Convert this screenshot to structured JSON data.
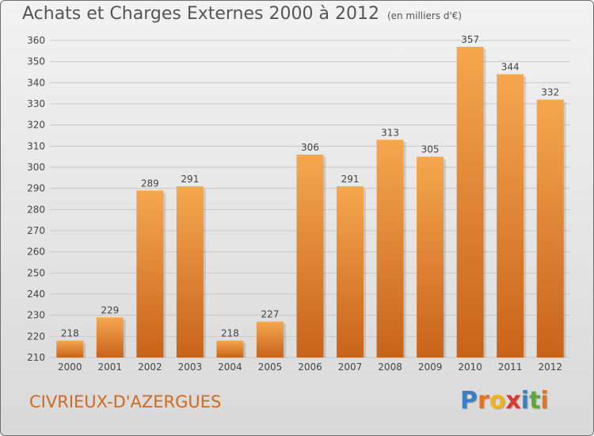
{
  "header": {
    "title": "Achats et Charges Externes 2000 à 2012",
    "unit": "(en milliers d'€)"
  },
  "location": "CIVRIEUX-D'AZERGUES",
  "logo": {
    "text": "Proxiti",
    "letters": [
      {
        "ch": "P",
        "color": "#3a7fc1"
      },
      {
        "ch": "r",
        "color": "#e8731a"
      },
      {
        "ch": "o",
        "color": "#f0b31e"
      },
      {
        "ch": "x",
        "color": "#d83a2c"
      },
      {
        "ch": "i",
        "color": "#3a7fc1"
      },
      {
        "ch": "t",
        "color": "#5aa83a"
      },
      {
        "ch": "i",
        "color": "#e8731a"
      }
    ]
  },
  "colors": {
    "bar_top": "#f5a74f",
    "bar_bottom": "#c8631a",
    "grid": "#c8c8c8",
    "axis_text": "#444444",
    "location": "#d2691e"
  },
  "chart_data": {
    "type": "bar",
    "title": "Achats et Charges Externes 2000 à 2012",
    "subtitle": "(en milliers d'€)",
    "xlabel": "",
    "ylabel": "",
    "categories": [
      "2000",
      "2001",
      "2002",
      "2003",
      "2004",
      "2005",
      "2006",
      "2007",
      "2008",
      "2009",
      "2010",
      "2011",
      "2012"
    ],
    "values": [
      218,
      229,
      289,
      291,
      218,
      227,
      306,
      291,
      313,
      305,
      357,
      344,
      332
    ],
    "ylim": [
      210,
      360
    ],
    "yticks": [
      210,
      220,
      230,
      240,
      250,
      260,
      270,
      280,
      290,
      300,
      310,
      320,
      330,
      340,
      350,
      360
    ],
    "grid": true,
    "data_labels": true
  }
}
